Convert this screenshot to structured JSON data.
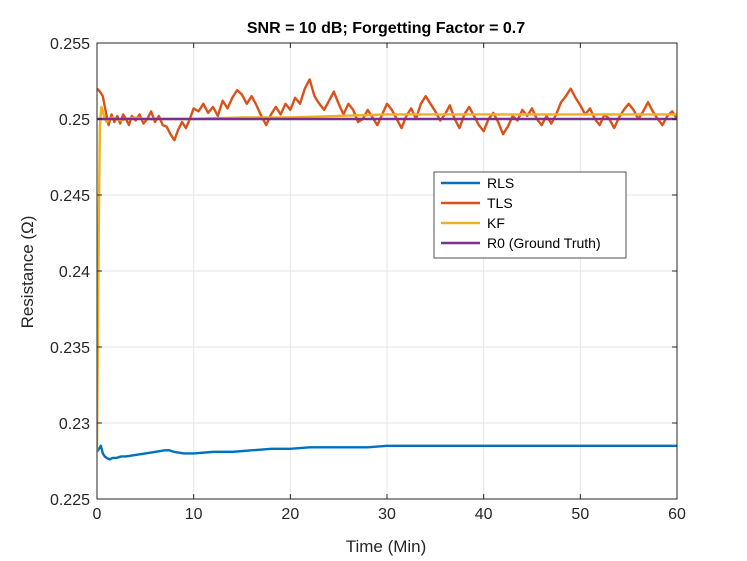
{
  "chart_data": {
    "type": "line",
    "title": "SNR = 10 dB; Forgetting Factor = 0.7",
    "xlabel": "Time (Min)",
    "ylabel": "Resistance (Ω)",
    "xlim": [
      0,
      60
    ],
    "ylim": [
      0.225,
      0.255
    ],
    "xticks": [
      0,
      10,
      20,
      30,
      40,
      50,
      60
    ],
    "xtick_labels": [
      "0",
      "10",
      "20",
      "30",
      "40",
      "50",
      "60"
    ],
    "yticks": [
      0.225,
      0.23,
      0.235,
      0.24,
      0.245,
      0.25,
      0.255
    ],
    "ytick_labels": [
      "0.225",
      "0.23",
      "0.235",
      "0.24",
      "0.245",
      "0.25",
      "0.255"
    ],
    "grid": true,
    "legend_position": "upper-right",
    "series": [
      {
        "name": "RLS",
        "color": "#0072BD",
        "x": [
          0,
          0.2,
          0.4,
          0.6,
          0.8,
          1.0,
          1.3,
          1.6,
          2.0,
          2.5,
          3.0,
          4.0,
          5.0,
          6.0,
          7.0,
          7.5,
          8.0,
          9.0,
          10.0,
          12.0,
          14.0,
          16.0,
          18.0,
          20.0,
          22.0,
          24.0,
          26.0,
          28.0,
          30.0,
          33.0,
          36.0,
          40.0,
          45.0,
          50.0,
          55.0,
          60.0
        ],
        "y": [
          0.2281,
          0.2283,
          0.2285,
          0.228,
          0.2278,
          0.2277,
          0.2276,
          0.2277,
          0.2277,
          0.2278,
          0.2278,
          0.2279,
          0.228,
          0.2281,
          0.2282,
          0.2282,
          0.2281,
          0.228,
          0.228,
          0.2281,
          0.2281,
          0.2282,
          0.2283,
          0.2283,
          0.2284,
          0.2284,
          0.2284,
          0.2284,
          0.2285,
          0.2285,
          0.2285,
          0.2285,
          0.2285,
          0.2285,
          0.2285,
          0.2285
        ]
      },
      {
        "name": "TLS",
        "color": "#D95319",
        "x": [
          0,
          0.3,
          0.6,
          0.9,
          1.2,
          1.5,
          1.8,
          2.1,
          2.4,
          2.7,
          3.0,
          3.3,
          3.6,
          4.0,
          4.4,
          4.8,
          5.2,
          5.6,
          6.0,
          6.4,
          6.8,
          7.2,
          7.6,
          8.0,
          8.4,
          8.8,
          9.2,
          9.6,
          10.0,
          10.5,
          11.0,
          11.5,
          12.0,
          12.5,
          13.0,
          13.5,
          14.0,
          14.5,
          15.0,
          15.5,
          16.0,
          16.5,
          17.0,
          17.5,
          18.0,
          18.5,
          19.0,
          19.5,
          20.0,
          20.5,
          21.0,
          21.5,
          22.0,
          22.5,
          23.0,
          23.5,
          24.0,
          24.5,
          25.0,
          25.5,
          26.0,
          26.5,
          27.0,
          27.5,
          28.0,
          28.5,
          29.0,
          29.5,
          30.0,
          30.5,
          31.0,
          31.5,
          32.0,
          32.5,
          33.0,
          33.5,
          34.0,
          34.5,
          35.0,
          35.5,
          36.0,
          36.5,
          37.0,
          37.5,
          38.0,
          38.5,
          39.0,
          39.5,
          40.0,
          40.5,
          41.0,
          41.5,
          42.0,
          42.5,
          43.0,
          43.5,
          44.0,
          44.5,
          45.0,
          45.5,
          46.0,
          46.5,
          47.0,
          47.5,
          48.0,
          48.5,
          49.0,
          49.5,
          50.0,
          50.5,
          51.0,
          51.5,
          52.0,
          52.5,
          53.0,
          53.5,
          54.0,
          54.5,
          55.0,
          55.5,
          56.0,
          56.5,
          57.0,
          57.5,
          58.0,
          58.5,
          59.0,
          59.5,
          60.0
        ],
        "y": [
          0.252,
          0.2518,
          0.2515,
          0.2505,
          0.2496,
          0.2503,
          0.2498,
          0.2502,
          0.2497,
          0.2503,
          0.25,
          0.2496,
          0.2502,
          0.2499,
          0.2503,
          0.2497,
          0.25,
          0.2505,
          0.2498,
          0.2502,
          0.2496,
          0.2495,
          0.249,
          0.2486,
          0.2493,
          0.2498,
          0.2494,
          0.25,
          0.2507,
          0.2505,
          0.251,
          0.2504,
          0.2508,
          0.2502,
          0.2512,
          0.2507,
          0.2514,
          0.2519,
          0.2516,
          0.251,
          0.2515,
          0.2509,
          0.2502,
          0.2496,
          0.2503,
          0.2508,
          0.2503,
          0.251,
          0.2506,
          0.2514,
          0.251,
          0.252,
          0.2526,
          0.2515,
          0.251,
          0.2506,
          0.2512,
          0.2518,
          0.251,
          0.2503,
          0.251,
          0.2506,
          0.2498,
          0.25,
          0.2506,
          0.2501,
          0.2496,
          0.2503,
          0.251,
          0.2506,
          0.25,
          0.2494,
          0.2502,
          0.2507,
          0.25,
          0.251,
          0.2515,
          0.251,
          0.2505,
          0.2499,
          0.2503,
          0.2509,
          0.25,
          0.2494,
          0.2503,
          0.2508,
          0.2502,
          0.2496,
          0.2492,
          0.25,
          0.2504,
          0.2498,
          0.249,
          0.2495,
          0.2502,
          0.2499,
          0.2506,
          0.2502,
          0.2507,
          0.25,
          0.2496,
          0.2502,
          0.2497,
          0.2503,
          0.2511,
          0.2515,
          0.252,
          0.2514,
          0.2509,
          0.2503,
          0.2507,
          0.25,
          0.2496,
          0.2503,
          0.25,
          0.2494,
          0.2501,
          0.2506,
          0.251,
          0.2506,
          0.25,
          0.2505,
          0.2511,
          0.2505,
          0.25,
          0.2496,
          0.2502,
          0.2505,
          0.25
        ]
      },
      {
        "name": "KF",
        "color": "#EDB120",
        "x": [
          0,
          0.1,
          0.2,
          0.3,
          0.45,
          0.6,
          0.8,
          1.0,
          1.3,
          1.6,
          2.0,
          2.5,
          3.0,
          4.0,
          5.0,
          6.0,
          8.0,
          10.0,
          15.0,
          20.0,
          25.0,
          30.0,
          35.0,
          40.0,
          45.0,
          50.0,
          55.0,
          60.0
        ],
        "y": [
          0.2281,
          0.236,
          0.244,
          0.2495,
          0.2508,
          0.2505,
          0.25,
          0.2498,
          0.25,
          0.2501,
          0.25,
          0.2499,
          0.25,
          0.2501,
          0.25,
          0.25,
          0.25,
          0.25,
          0.2501,
          0.2501,
          0.2502,
          0.2503,
          0.2503,
          0.2503,
          0.2503,
          0.2503,
          0.2503,
          0.2503
        ]
      },
      {
        "name": "R0 (Ground Truth)",
        "color": "#7E2F8E",
        "x": [
          0,
          60
        ],
        "y": [
          0.25,
          0.25
        ]
      }
    ]
  }
}
